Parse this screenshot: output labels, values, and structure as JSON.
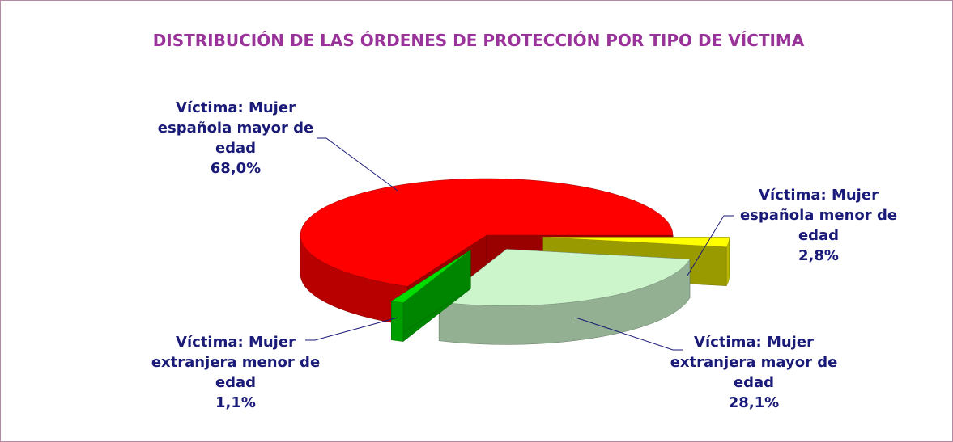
{
  "chart_data": {
    "type": "pie3d",
    "title": "DISTRIBUCIÓN DE LAS ÓRDENES DE PROTECCIÓN POR TIPO DE VÍCTIMA",
    "categories": [
      "Víctima: Mujer española menor de edad",
      "Víctima: Mujer extranjera mayor de edad",
      "Víctima: Mujer extranjera menor de edad",
      "Víctima: Mujer española mayor de edad"
    ],
    "values": [
      2.8,
      28.1,
      1.1,
      68.0
    ],
    "value_labels": [
      "2,8%",
      "28,1%",
      "1,1%",
      "68,0%"
    ],
    "colors": [
      "#ffff00",
      "#ccf5cc",
      "#00dd00",
      "#ff0000"
    ]
  }
}
